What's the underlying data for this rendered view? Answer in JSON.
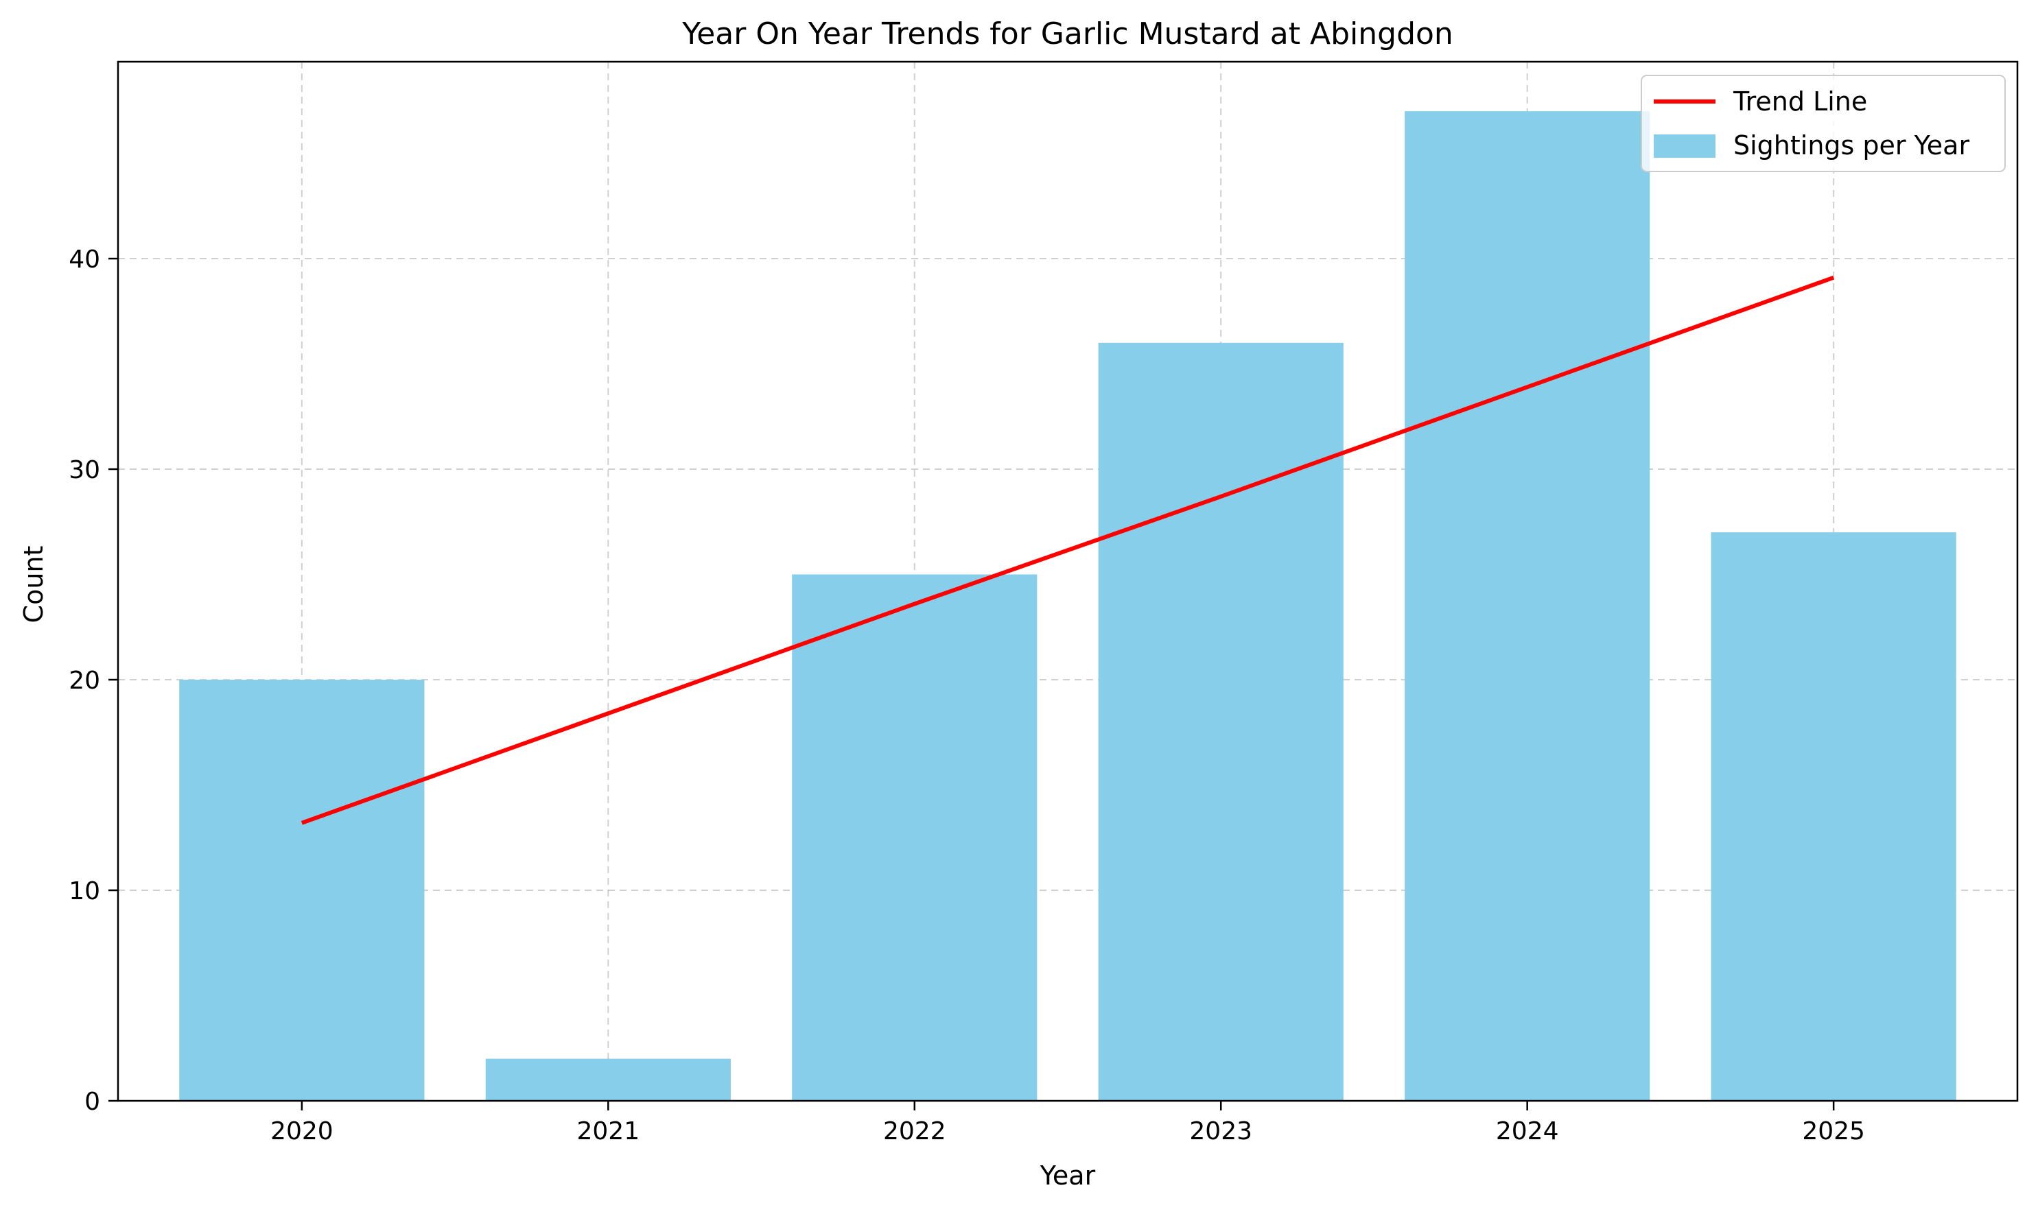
{
  "chart_data": {
    "type": "bar",
    "title": "Year On Year Trends for Garlic Mustard at Abingdon",
    "xlabel": "Year",
    "ylabel": "Count",
    "categories": [
      "2020",
      "2021",
      "2022",
      "2023",
      "2024",
      "2025"
    ],
    "series": [
      {
        "name": "Sightings per Year",
        "type": "bar",
        "values": [
          20,
          2,
          25,
          36,
          47,
          27
        ],
        "color": "#87CEEB"
      },
      {
        "name": "Trend Line",
        "type": "line",
        "values": [
          13.2,
          18.4,
          23.6,
          28.7,
          33.9,
          39.1
        ],
        "color": "#FF0000"
      }
    ],
    "ylim": [
      0,
      49.35
    ],
    "yticks": [
      0,
      10,
      20,
      30,
      40
    ],
    "grid": true,
    "legend_position": "top-right"
  }
}
